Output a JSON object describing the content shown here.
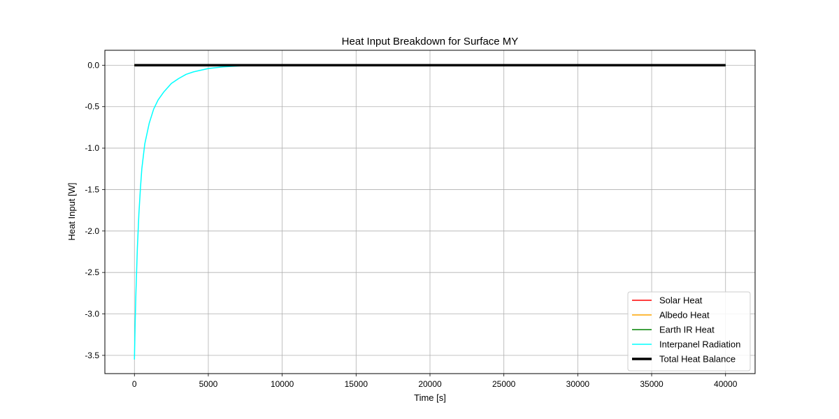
{
  "chart_data": {
    "type": "line",
    "title": "Heat Input Breakdown for Surface MY",
    "xlabel": "Time [s]",
    "ylabel": "Heat Input [W]",
    "xlim": [
      -2000,
      42000
    ],
    "ylim": [
      -3.72,
      0.18
    ],
    "xticks": [
      0,
      5000,
      10000,
      15000,
      20000,
      25000,
      30000,
      35000,
      40000
    ],
    "xtick_labels": [
      "0",
      "5000",
      "10000",
      "15000",
      "20000",
      "25000",
      "30000",
      "35000",
      "40000"
    ],
    "yticks": [
      0.0,
      -0.5,
      -1.0,
      -1.5,
      -2.0,
      -2.5,
      -3.0,
      -3.5
    ],
    "ytick_labels": [
      "0.0",
      "-0.5",
      "-1.0",
      "-1.5",
      "-2.0",
      "-2.5",
      "-3.0",
      "-3.5"
    ],
    "grid": true,
    "legend_position": "lower-right",
    "series": [
      {
        "name": "Solar Heat",
        "color": "#ff0000",
        "width": 1.5,
        "x": [
          0,
          40000
        ],
        "y": [
          0.0,
          0.0
        ]
      },
      {
        "name": "Albedo Heat",
        "color": "#ffa500",
        "width": 1.5,
        "x": [
          0,
          40000
        ],
        "y": [
          0.0,
          0.0
        ]
      },
      {
        "name": "Earth IR Heat",
        "color": "#008000",
        "width": 1.5,
        "x": [
          0,
          40000
        ],
        "y": [
          0.0,
          0.0
        ]
      },
      {
        "name": "Interpanel Radiation",
        "color": "#00ffff",
        "width": 1.5,
        "x": [
          0,
          50,
          100,
          200,
          300,
          400,
          500,
          700,
          1000,
          1300,
          1600,
          2000,
          2500,
          3000,
          3500,
          4000,
          5000,
          6000,
          7000,
          8000,
          9000,
          10000,
          15000,
          20000,
          30000,
          40000
        ],
        "y": [
          -3.55,
          -3.1,
          -2.75,
          -2.2,
          -1.8,
          -1.5,
          -1.25,
          -0.95,
          -0.7,
          -0.53,
          -0.42,
          -0.32,
          -0.22,
          -0.16,
          -0.11,
          -0.08,
          -0.04,
          -0.02,
          -0.01,
          0.0,
          0.0,
          0.0,
          0.0,
          0.0,
          0.0,
          0.0
        ]
      },
      {
        "name": "Total Heat Balance",
        "color": "#000000",
        "width": 3.5,
        "x": [
          0,
          40000
        ],
        "y": [
          0.0,
          0.0
        ]
      }
    ]
  }
}
